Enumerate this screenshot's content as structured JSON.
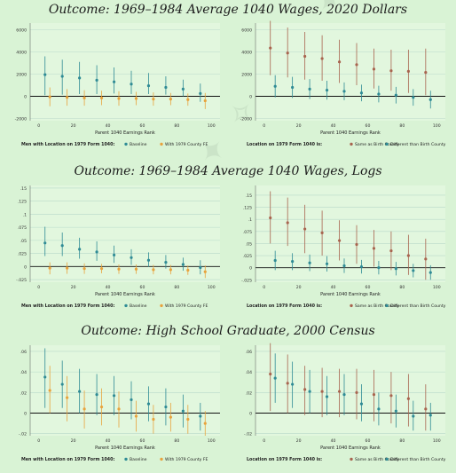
{
  "sections": [
    {
      "title": "Outcome: 1969–1984 Average 1040 Wages, 2020 Dollars"
    },
    {
      "title": "Outcome: 1969–1984 Average 1040 Wages, Logs"
    },
    {
      "title": "Outcome: High School Graduate, 2000 Census"
    }
  ],
  "colors": {
    "series_a_left": "#2f8b95",
    "series_b_left": "#e8a33d",
    "series_a_right": "#a8644f",
    "series_b_right": "#2f8b95",
    "panel_bg": "#e2f7de",
    "grid": "#b9d9c9",
    "zero_line": "#111111"
  },
  "chart_data": [
    {
      "type": "scatter",
      "xlabel": "Parent 1040 Earnings Rank",
      "ylabel": "",
      "xlim": [
        -5,
        105
      ],
      "ylim": [
        -2200,
        6600
      ],
      "xticks": [
        0,
        20,
        40,
        60,
        80,
        100
      ],
      "yticks": [
        -2000,
        0,
        2000,
        4000,
        6000
      ],
      "yticklabels": [
        "-2000",
        "0",
        "2000",
        "4000",
        "6000"
      ],
      "legend_title": "Men with Location on 1979 Form 1040:",
      "series": [
        {
          "name": "Baseline",
          "color": "#2f8b95",
          "offset": -1.4,
          "x": [
            5,
            15,
            25,
            35,
            45,
            55,
            65,
            75,
            85,
            95
          ],
          "y": [
            1950,
            1800,
            1650,
            1450,
            1300,
            1100,
            950,
            800,
            650,
            250
          ],
          "lo": [
            100,
            150,
            200,
            200,
            250,
            200,
            200,
            150,
            0,
            -500
          ],
          "hi": [
            3600,
            3300,
            3100,
            2800,
            2600,
            2300,
            2100,
            1800,
            1500,
            1150
          ]
        },
        {
          "name": "With 1979 County FE",
          "color": "#e8a33d",
          "offset": 1.4,
          "x": [
            5,
            15,
            25,
            35,
            45,
            55,
            65,
            75,
            85,
            95
          ],
          "y": [
            -50,
            -100,
            -150,
            -150,
            -200,
            -200,
            -250,
            -250,
            -300,
            -400
          ],
          "lo": [
            -900,
            -850,
            -850,
            -800,
            -850,
            -800,
            -850,
            -800,
            -850,
            -1150
          ],
          "hi": [
            800,
            650,
            550,
            500,
            450,
            400,
            350,
            300,
            250,
            300
          ]
        }
      ]
    },
    {
      "type": "scatter",
      "xlabel": "Parent 1040 Earnings Rank",
      "ylabel": "",
      "xlim": [
        -5,
        105
      ],
      "ylim": [
        -2200,
        6600
      ],
      "xticks": [
        0,
        20,
        40,
        60,
        80,
        100
      ],
      "yticks": [
        -2000,
        0,
        2000,
        4000,
        6000
      ],
      "yticklabels": [
        "-2000",
        "0",
        "2000",
        "4000",
        "6000"
      ],
      "legend_title": "Location on 1979 Form 1040 is:",
      "series": [
        {
          "name": "Same as Birth County",
          "color": "#a8644f",
          "offset": -1.4,
          "x": [
            5,
            15,
            25,
            35,
            45,
            55,
            65,
            75,
            85,
            95
          ],
          "y": [
            4350,
            3900,
            3600,
            3400,
            3100,
            2850,
            2450,
            2300,
            2250,
            2150
          ],
          "lo": [
            1900,
            1700,
            1500,
            1400,
            1200,
            1000,
            700,
            500,
            300,
            100
          ],
          "hi": [
            6800,
            6200,
            5800,
            5500,
            5100,
            4800,
            4300,
            4200,
            4200,
            4300
          ]
        },
        {
          "name": "Different than Birth County",
          "color": "#2f8b95",
          "offset": 1.4,
          "x": [
            5,
            15,
            25,
            35,
            45,
            55,
            65,
            75,
            85,
            95
          ],
          "y": [
            900,
            800,
            650,
            550,
            450,
            300,
            200,
            100,
            -100,
            -300
          ],
          "lo": [
            -100,
            -150,
            -250,
            -300,
            -350,
            -450,
            -550,
            -650,
            -850,
            -1100
          ],
          "hi": [
            1900,
            1750,
            1550,
            1400,
            1250,
            1050,
            950,
            850,
            650,
            500
          ]
        }
      ]
    },
    {
      "type": "scatter",
      "xlabel": "Parent 1040 Earnings Rank",
      "ylabel": "",
      "xlim": [
        -5,
        105
      ],
      "ylim": [
        -0.03,
        0.155
      ],
      "xticks": [
        0,
        20,
        40,
        60,
        80,
        100
      ],
      "yticks": [
        -0.025,
        0,
        0.025,
        0.05,
        0.075,
        0.1,
        0.125,
        0.15
      ],
      "yticklabels": [
        "-.025",
        "0",
        ".025",
        ".05",
        ".075",
        ".1",
        ".125",
        ".15"
      ],
      "legend_title": "Men with Location on 1979 Form 1040:",
      "series": [
        {
          "name": "Baseline",
          "color": "#2f8b95",
          "offset": -1.4,
          "x": [
            5,
            15,
            25,
            35,
            45,
            55,
            65,
            75,
            85,
            95
          ],
          "y": [
            0.045,
            0.04,
            0.033,
            0.028,
            0.022,
            0.017,
            0.012,
            0.008,
            0.004,
            -0.002
          ],
          "lo": [
            0.02,
            0.02,
            0.015,
            0.011,
            0.007,
            0.003,
            -0.001,
            -0.004,
            -0.008,
            -0.015
          ],
          "hi": [
            0.076,
            0.065,
            0.055,
            0.048,
            0.04,
            0.033,
            0.027,
            0.022,
            0.017,
            0.012
          ]
        },
        {
          "name": "With 1979 County FE",
          "color": "#e8a33d",
          "offset": 1.4,
          "x": [
            5,
            15,
            25,
            35,
            45,
            55,
            65,
            75,
            85,
            95
          ],
          "y": [
            -0.003,
            -0.003,
            -0.004,
            -0.004,
            -0.005,
            -0.005,
            -0.006,
            -0.006,
            -0.007,
            -0.01
          ],
          "lo": [
            -0.015,
            -0.014,
            -0.014,
            -0.013,
            -0.014,
            -0.014,
            -0.015,
            -0.015,
            -0.016,
            -0.022
          ],
          "hi": [
            0.008,
            0.008,
            0.006,
            0.005,
            0.004,
            0.004,
            0.003,
            0.003,
            0.002,
            0.002
          ]
        }
      ]
    },
    {
      "type": "scatter",
      "xlabel": "Parent 1040 Earnings Rank",
      "ylabel": "",
      "xlim": [
        -5,
        105
      ],
      "ylim": [
        -0.03,
        0.17
      ],
      "xticks": [
        0,
        20,
        40,
        60,
        80,
        100
      ],
      "yticks": [
        -0.025,
        0,
        0.025,
        0.05,
        0.075,
        0.1,
        0.125,
        0.15
      ],
      "yticklabels": [
        "-.025",
        "0",
        ".025",
        ".05",
        ".075",
        ".1",
        ".125",
        ".15"
      ],
      "legend_title": "Location on 1979 Form 1040 is:",
      "series": [
        {
          "name": "Same as Birth County",
          "color": "#a8644f",
          "offset": -1.4,
          "x": [
            5,
            15,
            25,
            35,
            45,
            55,
            65,
            75,
            85,
            95
          ],
          "y": [
            0.103,
            0.093,
            0.08,
            0.072,
            0.056,
            0.048,
            0.04,
            0.035,
            0.025,
            0.018
          ],
          "lo": [
            0.05,
            0.045,
            0.03,
            0.025,
            0.015,
            0.008,
            0.002,
            -0.005,
            -0.015,
            -0.025
          ],
          "hi": [
            0.158,
            0.145,
            0.13,
            0.118,
            0.098,
            0.088,
            0.078,
            0.075,
            0.068,
            0.06
          ]
        },
        {
          "name": "Different than Birth County",
          "color": "#2f8b95",
          "offset": 1.4,
          "x": [
            5,
            15,
            25,
            35,
            45,
            55,
            65,
            75,
            85,
            95
          ],
          "y": [
            0.015,
            0.013,
            0.01,
            0.008,
            0.004,
            0.002,
            0.0,
            -0.002,
            -0.006,
            -0.01
          ],
          "lo": [
            -0.005,
            -0.005,
            -0.007,
            -0.008,
            -0.011,
            -0.012,
            -0.014,
            -0.016,
            -0.02,
            -0.025
          ],
          "hi": [
            0.035,
            0.03,
            0.027,
            0.024,
            0.019,
            0.016,
            0.014,
            0.012,
            0.008,
            0.005
          ]
        }
      ]
    },
    {
      "type": "scatter",
      "xlabel": "Parent 1040 Earnings Rank",
      "ylabel": "",
      "xlim": [
        -5,
        105
      ],
      "ylim": [
        -0.022,
        0.066
      ],
      "xticks": [
        0,
        20,
        40,
        60,
        80,
        100
      ],
      "yticks": [
        -0.02,
        0,
        0.02,
        0.04,
        0.06
      ],
      "yticklabels": [
        "-.02",
        "0",
        ".02",
        ".04",
        ".06"
      ],
      "legend_title": "Men with Location on 1979 Form 1040:",
      "series": [
        {
          "name": "Baseline",
          "color": "#2f8b95",
          "offset": -1.4,
          "x": [
            5,
            15,
            25,
            35,
            45,
            55,
            65,
            75,
            85,
            95
          ],
          "y": [
            0.035,
            0.028,
            0.021,
            0.018,
            0.017,
            0.013,
            0.009,
            0.006,
            0.002,
            -0.003
          ],
          "lo": [
            0.005,
            0.005,
            0.0,
            -0.002,
            -0.002,
            -0.006,
            -0.008,
            -0.012,
            -0.014,
            -0.017
          ],
          "hi": [
            0.063,
            0.051,
            0.043,
            0.038,
            0.036,
            0.031,
            0.026,
            0.024,
            0.018,
            0.01
          ]
        },
        {
          "name": "With 1979 County FE",
          "color": "#e8a33d",
          "offset": 1.4,
          "x": [
            5,
            15,
            25,
            35,
            45,
            55,
            65,
            75,
            85,
            95
          ],
          "y": [
            0.022,
            0.015,
            0.004,
            0.006,
            0.004,
            -0.003,
            -0.006,
            -0.004,
            -0.006,
            -0.01
          ],
          "lo": [
            0.0,
            -0.008,
            -0.015,
            -0.012,
            -0.014,
            -0.018,
            -0.02,
            -0.018,
            -0.02,
            -0.022
          ],
          "hi": [
            0.046,
            0.036,
            0.022,
            0.024,
            0.021,
            0.012,
            0.008,
            0.01,
            0.008,
            0.002
          ]
        }
      ]
    },
    {
      "type": "scatter",
      "xlabel": "Parent 1040 Earnings Rank",
      "ylabel": "",
      "xlim": [
        -5,
        105
      ],
      "ylim": [
        -0.022,
        0.066
      ],
      "xticks": [
        0,
        20,
        40,
        60,
        80,
        100
      ],
      "yticks": [
        -0.02,
        0,
        0.02,
        0.04,
        0.06
      ],
      "yticklabels": [
        "-.02",
        "0",
        ".02",
        ".04",
        ".06"
      ],
      "legend_title": "Location on 1979 Form 1040 is:",
      "series": [
        {
          "name": "Same as Birth County",
          "color": "#a8644f",
          "offset": -1.4,
          "x": [
            5,
            15,
            25,
            35,
            45,
            55,
            65,
            75,
            85,
            95
          ],
          "y": [
            0.038,
            0.029,
            0.023,
            0.021,
            0.021,
            0.02,
            0.018,
            0.017,
            0.014,
            0.004
          ],
          "lo": [
            0.002,
            0.0,
            -0.002,
            -0.004,
            -0.004,
            -0.006,
            -0.008,
            -0.01,
            -0.013,
            -0.017
          ],
          "hi": [
            0.068,
            0.057,
            0.046,
            0.044,
            0.043,
            0.043,
            0.042,
            0.04,
            0.038,
            0.028
          ]
        },
        {
          "name": "Different than Birth County",
          "color": "#2f8b95",
          "offset": 1.4,
          "x": [
            5,
            15,
            25,
            35,
            45,
            55,
            65,
            75,
            85,
            95
          ],
          "y": [
            0.034,
            0.028,
            0.021,
            0.016,
            0.018,
            0.009,
            0.004,
            0.002,
            -0.003,
            -0.002
          ],
          "lo": [
            0.01,
            0.005,
            0.0,
            -0.002,
            -0.002,
            -0.008,
            -0.012,
            -0.014,
            -0.017,
            -0.017
          ],
          "hi": [
            0.058,
            0.05,
            0.042,
            0.036,
            0.038,
            0.028,
            0.02,
            0.018,
            0.012,
            0.01
          ]
        }
      ]
    }
  ]
}
